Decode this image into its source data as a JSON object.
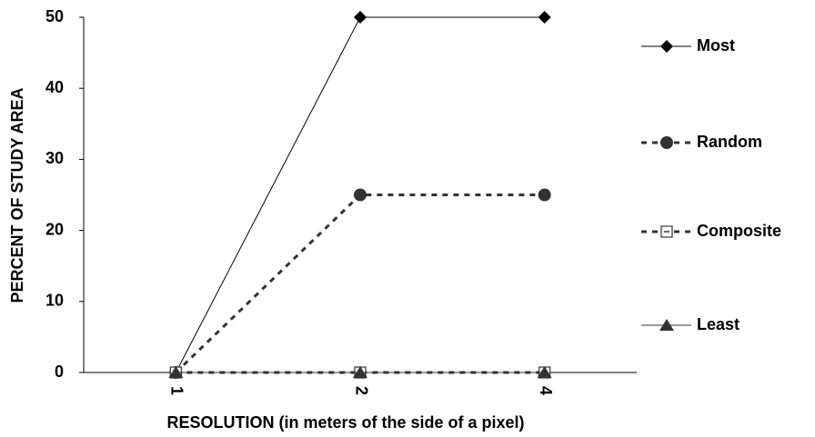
{
  "chart_data": {
    "type": "line",
    "xlabel": "RESOLUTION (in meters of the side of a pixel)",
    "ylabel": "PERCENT OF STUDY AREA",
    "categories": [
      "1",
      "2",
      "4"
    ],
    "ylim": [
      0,
      50
    ],
    "yticks": [
      0,
      10,
      20,
      30,
      40,
      50
    ],
    "grid": false,
    "legend": "right",
    "series": [
      {
        "name": "Most",
        "color": "#000000",
        "dashed": false,
        "marker": "diamond",
        "values": [
          0,
          50,
          50
        ]
      },
      {
        "name": "Random",
        "color": "#333333",
        "dashed": true,
        "marker": "circle",
        "values": [
          0,
          25,
          25
        ]
      },
      {
        "name": "Composite",
        "color": "#333333",
        "dashed": true,
        "marker": "square",
        "values": [
          0,
          0,
          0
        ]
      },
      {
        "name": "Least",
        "color": "#333333",
        "dashed": false,
        "marker": "triangle",
        "values": [
          0,
          0,
          0
        ]
      }
    ]
  }
}
